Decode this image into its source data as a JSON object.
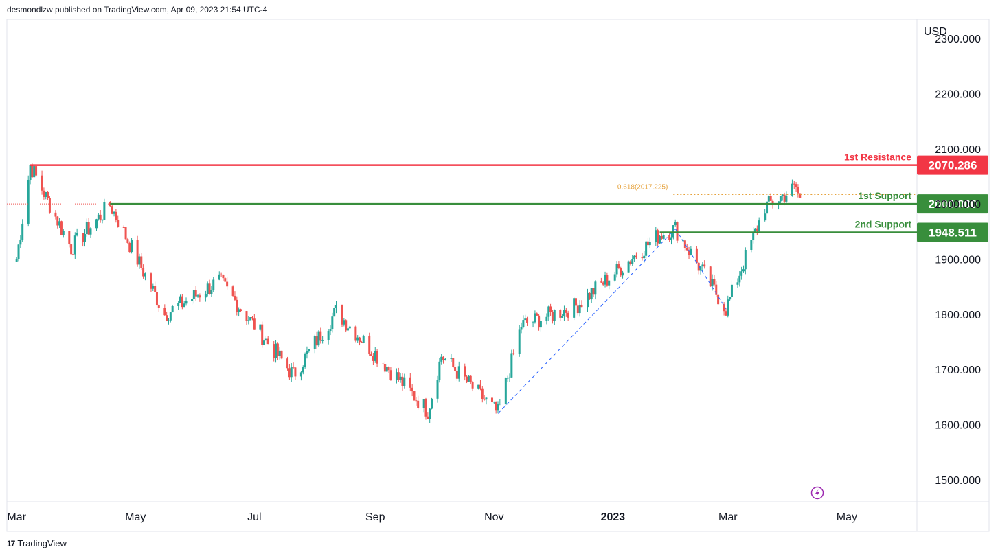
{
  "header": {
    "publisher_text": "desmondlzw published on TradingView.com, Apr 09, 2023 21:54 UTC-4"
  },
  "footer": {
    "brand": "TradingView",
    "logo_glyph": "17"
  },
  "colors": {
    "up": "#26a69a",
    "down": "#ef5350",
    "resistance": "#f23645",
    "support": "#388e3c",
    "fib": "#e6a23c",
    "trend": "#2962ff",
    "grid": "#e0e3eb",
    "text": "#131722",
    "flash": "#9c27b0"
  },
  "chart_data": {
    "type": "candlestick",
    "symbol_currency": "USD",
    "y_axis": {
      "ylim": [
        1460,
        2335
      ],
      "ticks": [
        1500,
        1600,
        1700,
        1800,
        1900,
        2000,
        2100,
        2200,
        2300
      ],
      "tick_labels": [
        "1500.000",
        "1600.000",
        "1700.000",
        "1800.000",
        "1900.000",
        "2000.000",
        "2100.000",
        "2200.000",
        "2300.000"
      ]
    },
    "x_axis": {
      "tick_labels": [
        "Mar",
        "May",
        "Jul",
        "Sep",
        "Nov",
        "2023",
        "Mar",
        "May"
      ]
    },
    "grid": false,
    "levels": [
      {
        "name": "1st Resistance",
        "value": 2070.286,
        "label": "2070.286",
        "kind": "resistance"
      },
      {
        "name": "1st Support",
        "value": 2000.0,
        "label": "2000.000",
        "kind": "support"
      },
      {
        "name": "2nd Support",
        "value": 1948.511,
        "label": "1948.511",
        "kind": "support"
      }
    ],
    "fibonacci": {
      "ratio_label": "0.618(2017.225)",
      "value": 2017.225
    },
    "key_prices": [
      {
        "date": "2022-03-01",
        "price": 1900
      },
      {
        "date": "2022-03-08",
        "price": 2070
      },
      {
        "date": "2022-03-29",
        "price": 1920
      },
      {
        "date": "2022-04-18",
        "price": 1998
      },
      {
        "date": "2022-05-16",
        "price": 1800
      },
      {
        "date": "2022-06-13",
        "price": 1860
      },
      {
        "date": "2022-07-21",
        "price": 1690
      },
      {
        "date": "2022-08-12",
        "price": 1805
      },
      {
        "date": "2022-09-28",
        "price": 1625
      },
      {
        "date": "2022-10-05",
        "price": 1725
      },
      {
        "date": "2022-11-03",
        "price": 1620
      },
      {
        "date": "2022-11-15",
        "price": 1780
      },
      {
        "date": "2022-12-13",
        "price": 1815
      },
      {
        "date": "2023-01-25",
        "price": 1945
      },
      {
        "date": "2023-02-02",
        "price": 1955
      },
      {
        "date": "2023-02-28",
        "price": 1810
      },
      {
        "date": "2023-03-20",
        "price": 1995
      },
      {
        "date": "2023-04-05",
        "price": 2030
      },
      {
        "date": "2023-04-07",
        "price": 2007
      }
    ],
    "trendlines": [
      {
        "from": {
          "date": "2022-11-03",
          "price": 1620
        },
        "to": {
          "date": "2023-02-02",
          "price": 1955
        }
      },
      {
        "from": {
          "date": "2023-02-02",
          "price": 1955
        },
        "to": {
          "date": "2023-02-28",
          "price": 1810
        }
      }
    ]
  }
}
